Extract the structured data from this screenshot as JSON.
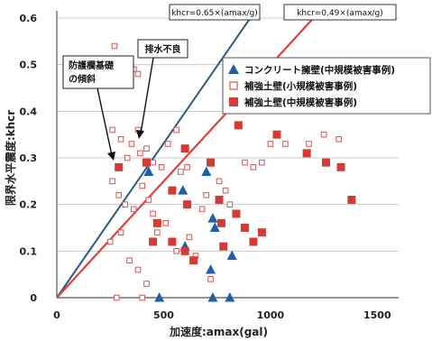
{
  "chart_data": {
    "type": "scatter",
    "xlabel": "加速度:amax(gal)",
    "ylabel": "限界水平震度:khcr",
    "xlim": [
      0,
      1600
    ],
    "ylim": [
      0,
      0.6
    ],
    "x_ticks": [
      "0",
      "500",
      "1000",
      "1500"
    ],
    "y_ticks": [
      "0",
      "0.1",
      "0.2",
      "0.3",
      "0.4",
      "0.5",
      "0.6"
    ],
    "grid": "horizontal",
    "legend_position": "upper-right",
    "lines": [
      {
        "label": "khcr=0.65×(amax/g)",
        "slope": 0.65,
        "color": "#2b5a86"
      },
      {
        "label": "khcr=0.49×(amax/g)",
        "slope": 0.49,
        "color": "#e0403a"
      }
    ],
    "annotations": [
      {
        "text_lines": [
          "排水不良"
        ]
      },
      {
        "text_lines": [
          "防護欄基礎",
          "の傾斜"
        ]
      }
    ],
    "series": [
      {
        "name": "コンクリート擁壁(中規模被害事例)",
        "marker": "triangle",
        "color": "#1f5fa8",
        "points": [
          [
            430,
            0.27
          ],
          [
            590,
            0.23
          ],
          [
            700,
            0.27
          ],
          [
            730,
            0.17
          ],
          [
            740,
            0.15
          ],
          [
            820,
            0.09
          ],
          [
            600,
            0.11
          ],
          [
            720,
            0.06
          ],
          [
            480,
            0.0
          ],
          [
            730,
            0.0
          ],
          [
            810,
            0.0
          ]
        ]
      },
      {
        "name": "補強土壁(小規模被害事例)",
        "marker": "square-open",
        "color": "#d9534f",
        "points": [
          [
            270,
            0.54
          ],
          [
            330,
            0.47
          ],
          [
            360,
            0.49
          ],
          [
            380,
            0.48
          ],
          [
            260,
            0.36
          ],
          [
            300,
            0.34
          ],
          [
            330,
            0.3
          ],
          [
            350,
            0.33
          ],
          [
            380,
            0.36
          ],
          [
            390,
            0.31
          ],
          [
            420,
            0.32
          ],
          [
            450,
            0.29
          ],
          [
            490,
            0.28
          ],
          [
            520,
            0.33
          ],
          [
            560,
            0.36
          ],
          [
            580,
            0.27
          ],
          [
            610,
            0.28
          ],
          [
            260,
            0.25
          ],
          [
            290,
            0.22
          ],
          [
            320,
            0.2
          ],
          [
            360,
            0.19
          ],
          [
            400,
            0.24
          ],
          [
            430,
            0.21
          ],
          [
            450,
            0.18
          ],
          [
            470,
            0.14
          ],
          [
            510,
            0.16
          ],
          [
            540,
            0.12
          ],
          [
            560,
            0.1
          ],
          [
            620,
            0.13
          ],
          [
            650,
            0.09
          ],
          [
            680,
            0.19
          ],
          [
            700,
            0.22
          ],
          [
            760,
            0.25
          ],
          [
            790,
            0.23
          ],
          [
            810,
            0.2
          ],
          [
            880,
            0.29
          ],
          [
            920,
            0.28
          ],
          [
            960,
            0.29
          ],
          [
            250,
            0.12
          ],
          [
            300,
            0.14
          ],
          [
            340,
            0.08
          ],
          [
            380,
            0.06
          ],
          [
            420,
            0.03
          ],
          [
            720,
            0.04
          ],
          [
            1000,
            0.33
          ],
          [
            1070,
            0.33
          ],
          [
            1180,
            0.33
          ],
          [
            1250,
            0.35
          ],
          [
            1320,
            0.34
          ],
          [
            280,
            0.0
          ],
          [
            400,
            0.0
          ]
        ]
      },
      {
        "name": "補強土壁(中規模被害事例)",
        "marker": "square-filled",
        "color": "#d63a32",
        "points": [
          [
            290,
            0.28
          ],
          [
            420,
            0.29
          ],
          [
            600,
            0.32
          ],
          [
            720,
            0.29
          ],
          [
            850,
            0.37
          ],
          [
            1030,
            0.35
          ],
          [
            1170,
            0.31
          ],
          [
            1260,
            0.29
          ],
          [
            1330,
            0.28
          ],
          [
            1380,
            0.21
          ],
          [
            540,
            0.23
          ],
          [
            610,
            0.2
          ],
          [
            470,
            0.16
          ],
          [
            450,
            0.12
          ],
          [
            540,
            0.12
          ],
          [
            600,
            0.1
          ],
          [
            640,
            0.08
          ],
          [
            760,
            0.21
          ],
          [
            770,
            0.16
          ],
          [
            780,
            0.11
          ],
          [
            840,
            0.18
          ],
          [
            880,
            0.15
          ],
          [
            920,
            0.12
          ],
          [
            960,
            0.14
          ]
        ]
      }
    ]
  }
}
